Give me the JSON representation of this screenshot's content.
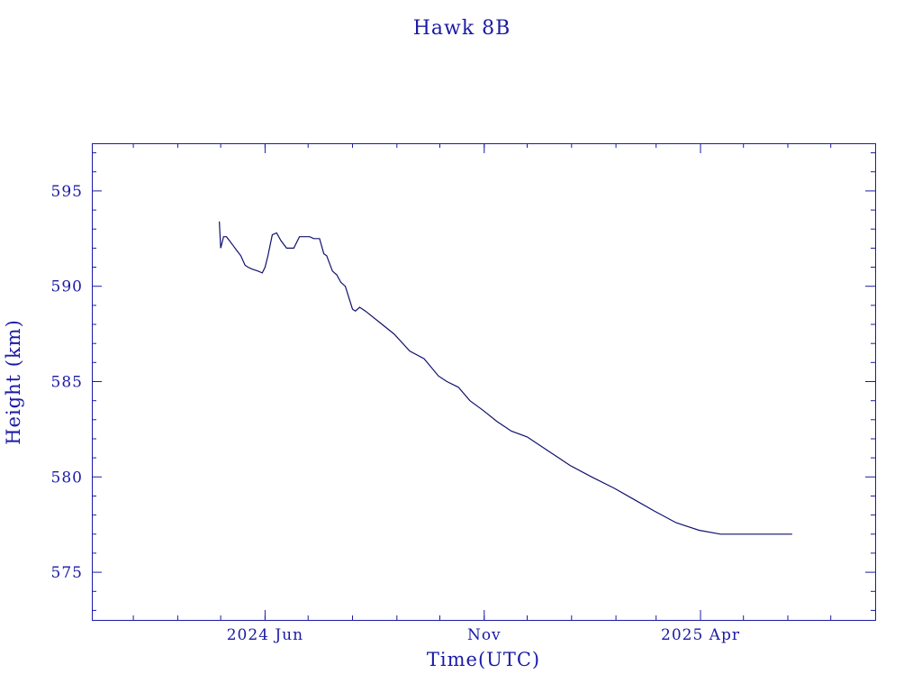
{
  "chart_data": {
    "type": "line",
    "title": "Hawk 8B",
    "xlabel": "Time(UTC)",
    "ylabel": "Height (km)",
    "colors": {
      "axis": "#1a1aa6",
      "series": "#10106e",
      "background": "#ffffff"
    },
    "grid": false,
    "xlim": [
      "2024-02-01",
      "2025-08-01"
    ],
    "ylim": [
      572.5,
      597.5
    ],
    "x_ticks": [
      {
        "date": "2024-06-01",
        "label": "2024 Jun"
      },
      {
        "date": "2024-11-01",
        "label": "Nov"
      },
      {
        "date": "2025-04-01",
        "label": "2025 Apr"
      }
    ],
    "y_ticks": [
      575,
      580,
      585,
      590,
      595
    ],
    "series": [
      {
        "x": [
          "2024-04-30",
          "2024-05-01",
          "2024-05-03",
          "2024-05-05",
          "2024-05-07",
          "2024-05-10",
          "2024-05-12",
          "2024-05-15",
          "2024-05-18",
          "2024-05-20",
          "2024-05-23",
          "2024-05-27",
          "2024-05-30",
          "2024-06-01",
          "2024-06-03",
          "2024-06-06",
          "2024-06-09",
          "2024-06-12",
          "2024-06-16",
          "2024-06-21",
          "2024-06-25",
          "2024-06-28",
          "2024-07-02",
          "2024-07-05",
          "2024-07-09",
          "2024-07-12",
          "2024-07-14",
          "2024-07-16",
          "2024-07-18",
          "2024-07-21",
          "2024-07-24",
          "2024-07-27",
          "2024-08-01",
          "2024-08-03",
          "2024-08-06",
          "2024-08-10",
          "2024-08-20",
          "2024-08-30",
          "2024-09-10",
          "2024-09-20",
          "2024-09-30",
          "2024-10-06",
          "2024-10-14",
          "2024-10-22",
          "2024-10-31",
          "2024-11-10",
          "2024-11-20",
          "2024-12-01",
          "2024-12-15",
          "2024-12-31",
          "2025-01-15",
          "2025-01-31",
          "2025-02-14",
          "2025-02-28",
          "2025-03-15",
          "2025-03-31",
          "2025-04-15",
          "2025-04-30",
          "2025-05-15",
          "2025-05-25",
          "2025-06-04"
        ],
        "y": [
          593.4,
          592.0,
          592.6,
          592.6,
          592.4,
          592.1,
          591.9,
          591.6,
          591.1,
          591.0,
          590.9,
          590.8,
          590.7,
          591.0,
          591.6,
          592.7,
          592.8,
          592.4,
          592.0,
          592.0,
          592.6,
          592.6,
          592.6,
          592.5,
          592.5,
          591.7,
          591.6,
          591.2,
          590.8,
          590.6,
          590.2,
          590.0,
          588.8,
          588.7,
          588.9,
          588.7,
          588.1,
          587.5,
          586.6,
          586.2,
          585.3,
          585.0,
          584.7,
          584.0,
          583.5,
          582.9,
          582.4,
          582.1,
          581.4,
          580.6,
          580.0,
          579.4,
          578.8,
          578.2,
          577.6,
          577.2,
          577.0,
          577.0,
          577.0,
          577.0,
          577.0
        ]
      }
    ]
  }
}
